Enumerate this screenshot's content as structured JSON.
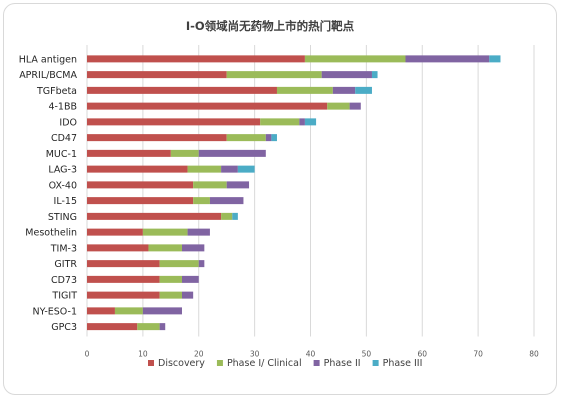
{
  "chart_data": {
    "type": "bar",
    "orientation": "horizontal",
    "stacked": true,
    "title": "I-O领域尚无药物上市的热门靶点",
    "categories": [
      "HLA antigen",
      "APRIL/BCMA",
      "TGFbeta",
      "4-1BB",
      "IDO",
      "CD47",
      "MUC-1",
      "LAG-3",
      "OX-40",
      "IL-15",
      "STING",
      "Mesothelin",
      "TIM-3",
      "GITR",
      "CD73",
      "TIGIT",
      "NY-ESO-1",
      "GPC3"
    ],
    "series": [
      {
        "name": "Discovery",
        "color": "#c0504d",
        "values": [
          39,
          25,
          34,
          43,
          31,
          25,
          15,
          18,
          19,
          19,
          24,
          10,
          11,
          13,
          13,
          13,
          5,
          9
        ]
      },
      {
        "name": "Phase I/ Clinical",
        "color": "#9bbb59",
        "values": [
          18,
          17,
          10,
          4,
          7,
          7,
          5,
          6,
          6,
          3,
          2,
          8,
          6,
          7,
          4,
          4,
          5,
          4
        ]
      },
      {
        "name": "Phase II",
        "color": "#8064a2",
        "values": [
          15,
          9,
          4,
          2,
          1,
          1,
          12,
          3,
          4,
          6,
          0,
          4,
          4,
          1,
          3,
          2,
          7,
          1
        ]
      },
      {
        "name": "Phase III",
        "color": "#4bacc6",
        "values": [
          2,
          1,
          3,
          0,
          2,
          1,
          0,
          3,
          0,
          0,
          1,
          0,
          0,
          0,
          0,
          0,
          0,
          0
        ]
      }
    ],
    "xlim": [
      0,
      80
    ],
    "xticks": [
      0,
      10,
      20,
      30,
      40,
      50,
      60,
      70,
      80
    ],
    "grid": "vertical",
    "legend": "bottom"
  }
}
